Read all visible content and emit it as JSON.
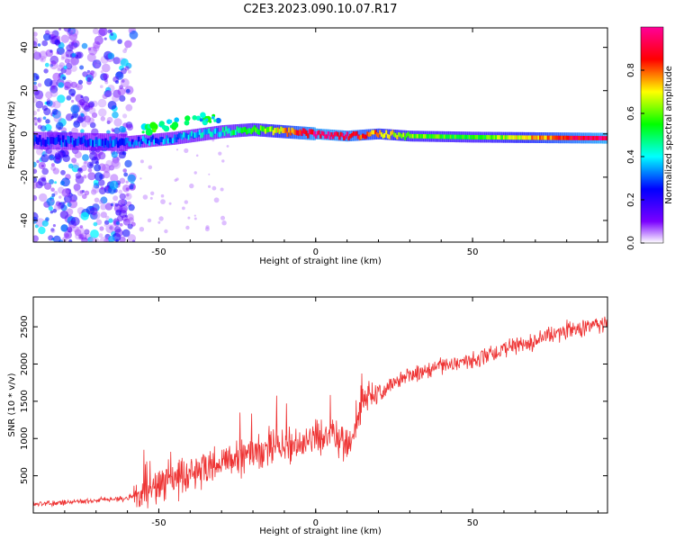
{
  "chart_data": [
    {
      "type": "heatmap",
      "title": "C2E3.2023.090.10.07.R17",
      "xlabel": "Height of straight line (km)",
      "ylabel": "Frequency (Hz)",
      "xlim": [
        -90,
        93
      ],
      "ylim": [
        -50,
        49
      ],
      "xticks": [
        -50,
        0,
        50
      ],
      "yticks": [
        -40,
        -20,
        0,
        20,
        40
      ],
      "colorbar": {
        "label": "Normalized spectral amplitude",
        "range": [
          0,
          1
        ],
        "ticks": [
          0.0,
          0.2,
          0.4,
          0.6,
          0.8
        ]
      },
      "ridge": {
        "description_points_x": [
          -90,
          -60,
          -45,
          -30,
          -20,
          -10,
          0,
          10,
          20,
          30,
          50,
          93
        ],
        "frequency_hz": [
          -3,
          -4,
          -2,
          1,
          2,
          1,
          0,
          -1,
          0,
          -1,
          -1.5,
          -2
        ],
        "amplitude": [
          0.25,
          0.3,
          0.35,
          0.4,
          0.55,
          0.75,
          0.95,
          0.9,
          0.75,
          0.6,
          0.55,
          0.98
        ]
      },
      "noise_region_x": [
        -90,
        -58
      ]
    },
    {
      "type": "line",
      "xlabel": "Height of straight line (km)",
      "ylabel": "SNR (10 * v/v)",
      "xlim": [
        -90,
        93
      ],
      "ylim": [
        0,
        2900
      ],
      "xticks": [
        -50,
        0,
        50
      ],
      "yticks": [
        500,
        1000,
        1500,
        2000,
        2500
      ],
      "color": "#ee3333",
      "series": [
        {
          "name": "SNR",
          "x": [
            -90,
            -80,
            -70,
            -60,
            -55,
            -50,
            -45,
            -40,
            -35,
            -30,
            -25,
            -20,
            -15,
            -10,
            -5,
            0,
            5,
            10,
            12,
            15,
            20,
            25,
            30,
            40,
            50,
            60,
            70,
            80,
            93
          ],
          "y": [
            120,
            140,
            170,
            200,
            280,
            380,
            440,
            520,
            580,
            650,
            720,
            780,
            820,
            900,
            950,
            1000,
            1080,
            900,
            950,
            1500,
            1600,
            1750,
            1850,
            1950,
            2050,
            2200,
            2300,
            2450,
            2550
          ]
        }
      ]
    }
  ]
}
